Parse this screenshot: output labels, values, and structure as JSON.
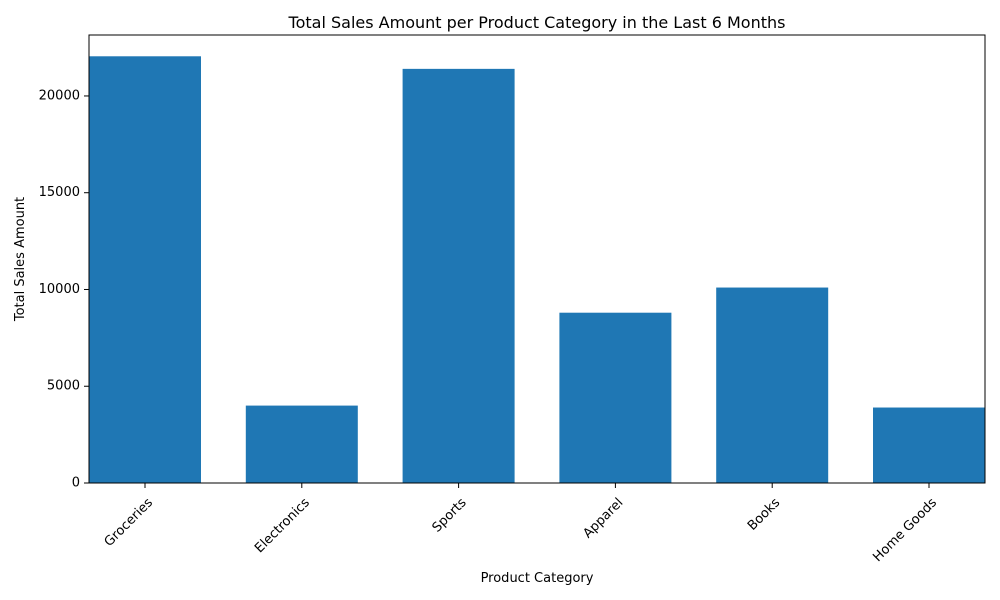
{
  "chart_data": {
    "type": "bar",
    "title": "Total Sales Amount per Product Category in the Last 6 Months",
    "xlabel": "Product Category",
    "ylabel": "Total Sales Amount",
    "categories": [
      "Groceries",
      "Electronics",
      "Sports",
      "Apparel",
      "Books",
      "Home Goods"
    ],
    "values": [
      22050,
      4000,
      21400,
      8800,
      10100,
      3900
    ],
    "ylim": [
      0,
      23150
    ],
    "yticks": [
      0,
      5000,
      10000,
      15000,
      20000
    ],
    "grid": false,
    "bar_color": "#1f77b4"
  }
}
